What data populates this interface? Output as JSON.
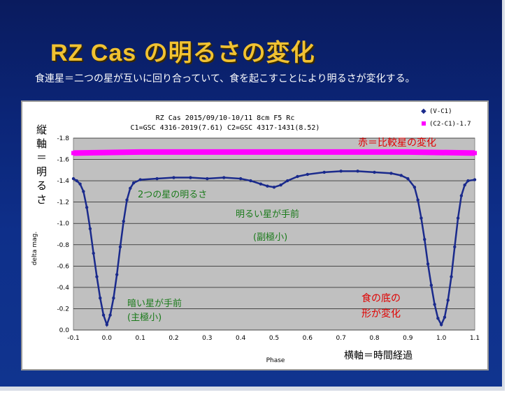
{
  "slide": {
    "title": "RZ  Cas  の明るさの変化",
    "subtitle": "食連星＝二つの星が互いに回り合っていて、食を起こすことにより明るさが変化する。"
  },
  "chart_data": {
    "type": "scatter",
    "header_line1": "RZ Cas  2015/09/10-10/11  8cm F5 Rc",
    "header_line2": "C1=GSC 4316-2019(7.61)   C2=GSC 4317-1431(8.52)",
    "xlabel": "Phase",
    "ylabel": "delta mag.",
    "xlim": [
      -0.1,
      1.1
    ],
    "ylim": [
      0.0,
      -1.8
    ],
    "x_ticks": [
      "-0.1",
      "0.0",
      "0.1",
      "0.2",
      "0.3",
      "0.4",
      "0.5",
      "0.6",
      "0.7",
      "0.8",
      "0.9",
      "1.0",
      "1.1"
    ],
    "y_ticks": [
      "-1.8",
      "-1.6",
      "-1.4",
      "-1.2",
      "-1.0",
      "-0.8",
      "-0.6",
      "-0.4",
      "-0.2",
      "0.0"
    ],
    "legend_position": "top-right",
    "series": [
      {
        "name": "(V-C1)",
        "color": "#1a2a8c",
        "points": [
          [
            -0.1,
            -1.42
          ],
          [
            -0.09,
            -1.4
          ],
          [
            -0.08,
            -1.37
          ],
          [
            -0.07,
            -1.3
          ],
          [
            -0.06,
            -1.15
          ],
          [
            -0.05,
            -0.95
          ],
          [
            -0.04,
            -0.72
          ],
          [
            -0.03,
            -0.5
          ],
          [
            -0.02,
            -0.3
          ],
          [
            -0.01,
            -0.14
          ],
          [
            0.0,
            -0.05
          ],
          [
            0.01,
            -0.14
          ],
          [
            0.02,
            -0.3
          ],
          [
            0.03,
            -0.52
          ],
          [
            0.04,
            -0.78
          ],
          [
            0.05,
            -1.02
          ],
          [
            0.06,
            -1.22
          ],
          [
            0.07,
            -1.33
          ],
          [
            0.08,
            -1.38
          ],
          [
            0.1,
            -1.41
          ],
          [
            0.15,
            -1.42
          ],
          [
            0.2,
            -1.43
          ],
          [
            0.25,
            -1.43
          ],
          [
            0.3,
            -1.42
          ],
          [
            0.35,
            -1.43
          ],
          [
            0.4,
            -1.42
          ],
          [
            0.43,
            -1.4
          ],
          [
            0.46,
            -1.37
          ],
          [
            0.48,
            -1.35
          ],
          [
            0.5,
            -1.34
          ],
          [
            0.52,
            -1.36
          ],
          [
            0.54,
            -1.4
          ],
          [
            0.57,
            -1.44
          ],
          [
            0.6,
            -1.46
          ],
          [
            0.65,
            -1.48
          ],
          [
            0.7,
            -1.49
          ],
          [
            0.75,
            -1.49
          ],
          [
            0.8,
            -1.48
          ],
          [
            0.85,
            -1.47
          ],
          [
            0.88,
            -1.45
          ],
          [
            0.9,
            -1.42
          ],
          [
            0.92,
            -1.34
          ],
          [
            0.93,
            -1.22
          ],
          [
            0.94,
            -1.05
          ],
          [
            0.95,
            -0.85
          ],
          [
            0.96,
            -0.62
          ],
          [
            0.97,
            -0.42
          ],
          [
            0.98,
            -0.24
          ],
          [
            0.99,
            -0.11
          ],
          [
            1.0,
            -0.05
          ],
          [
            1.01,
            -0.12
          ],
          [
            1.02,
            -0.28
          ],
          [
            1.03,
            -0.5
          ],
          [
            1.04,
            -0.78
          ],
          [
            1.05,
            -1.05
          ],
          [
            1.06,
            -1.26
          ],
          [
            1.07,
            -1.36
          ],
          [
            1.08,
            -1.4
          ],
          [
            1.1,
            -1.41
          ]
        ]
      },
      {
        "name": "(C2-C1)-1.7",
        "color": "#ff00ff",
        "points": [
          [
            -0.1,
            -1.66
          ],
          [
            0.1,
            -1.67
          ],
          [
            0.3,
            -1.67
          ],
          [
            0.5,
            -1.67
          ],
          [
            0.7,
            -1.67
          ],
          [
            0.9,
            -1.67
          ],
          [
            1.1,
            -1.66
          ]
        ]
      }
    ],
    "annotations": [
      {
        "text": "赤＝比較星の変化",
        "color": "#e00000"
      },
      {
        "text": "2つの星の明るさ",
        "color": "#1a7a1a"
      },
      {
        "text": "明るい星が手前",
        "color": "#1a7a1a"
      },
      {
        "text": "(副極小)",
        "color": "#1a7a1a"
      },
      {
        "text": "暗い星が手前",
        "color": "#1a7a1a"
      },
      {
        "text": "(主極小)",
        "color": "#1a7a1a"
      },
      {
        "text": "食の底の",
        "color": "#e00000"
      },
      {
        "text": "形が変化",
        "color": "#e00000"
      }
    ],
    "axis_notes": {
      "vertical_lines": [
        "縦",
        "軸",
        "＝",
        "明",
        "る",
        "さ"
      ],
      "horizontal": "横軸＝時間経過"
    }
  }
}
